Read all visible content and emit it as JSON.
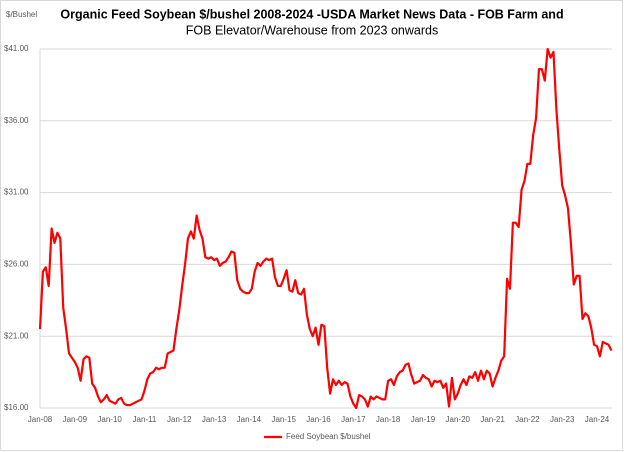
{
  "chart_data": {
    "type": "line",
    "title": [
      "Organic Feed Soybean $/bushel 2008-2024 -USDA Market News Data - FOB Farm and",
      "FOB Elevator/Warehouse from 2023 onwards"
    ],
    "y_label": "$/Bushel",
    "categories": [
      "Jan-08",
      null,
      null,
      null,
      null,
      null,
      null,
      null,
      null,
      null,
      null,
      null,
      "Jan-09",
      null,
      null,
      null,
      null,
      null,
      null,
      null,
      null,
      null,
      null,
      null,
      "Jan-10",
      null,
      null,
      null,
      null,
      null,
      null,
      null,
      null,
      null,
      null,
      null,
      "Jan-11",
      null,
      null,
      null,
      null,
      null,
      null,
      null,
      null,
      null,
      null,
      null,
      "Jan-12",
      null,
      null,
      null,
      null,
      null,
      null,
      null,
      null,
      null,
      null,
      null,
      "Jan-13",
      null,
      null,
      null,
      null,
      null,
      null,
      null,
      null,
      null,
      null,
      null,
      "Jan-14",
      null,
      null,
      null,
      null,
      null,
      null,
      null,
      null,
      null,
      null,
      null,
      "Jan-15",
      null,
      null,
      null,
      null,
      null,
      null,
      null,
      null,
      null,
      null,
      null,
      "Jan-16",
      null,
      null,
      null,
      null,
      null,
      null,
      null,
      null,
      null,
      null,
      null,
      "Jan-17",
      null,
      null,
      null,
      null,
      null,
      null,
      null,
      null,
      null,
      null,
      null,
      "Jan-18",
      null,
      null,
      null,
      null,
      null,
      null,
      null,
      null,
      null,
      null,
      null,
      "Jan-19",
      null,
      null,
      null,
      null,
      null,
      null,
      null,
      null,
      null,
      null,
      null,
      "Jan-20",
      null,
      null,
      null,
      null,
      null,
      null,
      null,
      null,
      null,
      null,
      null,
      "Jan-21",
      null,
      null,
      null,
      null,
      null,
      null,
      null,
      null,
      null,
      null,
      null,
      "Jan-22",
      null,
      null,
      null,
      null,
      null,
      null,
      null,
      null,
      null,
      null,
      null,
      "Jan-23",
      null,
      null,
      null,
      null,
      null,
      null,
      null,
      null,
      null,
      null,
      null,
      "Jan-24",
      null,
      null,
      null,
      null,
      null
    ],
    "series": [
      {
        "name": "Feed Soybean $/bushel",
        "color": "#ff0000",
        "values": [
          21.5,
          25.5,
          25.8,
          24.5,
          28.5,
          27.5,
          28.2,
          27.8,
          23.0,
          21.5,
          19.8,
          19.5,
          19.2,
          18.8,
          17.9,
          19.4,
          19.6,
          19.5,
          17.7,
          17.4,
          16.8,
          16.4,
          16.6,
          16.9,
          16.5,
          16.4,
          16.3,
          16.6,
          16.7,
          16.3,
          16.2,
          16.2,
          16.3,
          16.4,
          16.5,
          16.6,
          17.2,
          18.0,
          18.4,
          18.5,
          18.8,
          18.7,
          18.8,
          18.8,
          19.8,
          19.9,
          20.0,
          21.5,
          22.8,
          24.5,
          26.0,
          27.8,
          28.3,
          27.8,
          29.4,
          28.4,
          27.8,
          26.5,
          26.4,
          26.5,
          26.3,
          26.4,
          25.9,
          26.1,
          26.2,
          26.5,
          26.9,
          26.8,
          24.9,
          24.3,
          24.1,
          24.0,
          24.0,
          24.3,
          25.5,
          26.1,
          25.9,
          26.2,
          26.4,
          26.3,
          26.4,
          25.1,
          24.5,
          24.5,
          25.0,
          25.6,
          24.2,
          24.1,
          24.9,
          24.0,
          23.9,
          24.3,
          22.5,
          21.5,
          21.0,
          21.6,
          20.4,
          21.8,
          21.7,
          18.8,
          17.0,
          18.0,
          17.6,
          17.9,
          17.6,
          17.8,
          17.7,
          16.8,
          16.3,
          16.0,
          16.9,
          16.8,
          16.6,
          16.1,
          16.8,
          16.6,
          16.8,
          16.7,
          16.6,
          16.6,
          17.9,
          18.0,
          17.6,
          18.2,
          18.5,
          18.6,
          19.0,
          19.1,
          18.3,
          17.7,
          17.8,
          17.9,
          18.3,
          18.1,
          18.0,
          17.5,
          17.9,
          17.8,
          17.9,
          17.4,
          17.7,
          16.1,
          18.1,
          16.6,
          17.0,
          17.6,
          18.0,
          17.6,
          18.2,
          18.1,
          18.5,
          17.9,
          18.6,
          18.0,
          18.6,
          18.4,
          17.5,
          18.1,
          18.6,
          19.3,
          19.6,
          25.0,
          24.3,
          28.9,
          28.9,
          28.6,
          31.2,
          31.8,
          33.0,
          33.0,
          35.0,
          36.2,
          39.6,
          39.6,
          38.8,
          41.0,
          40.4,
          40.8,
          36.8,
          34.0,
          31.5,
          30.8,
          29.9,
          27.5,
          24.6,
          25.2,
          25.2,
          22.2,
          22.6,
          22.4,
          21.6,
          20.4,
          20.3,
          19.6,
          20.6,
          20.5,
          20.4,
          20.0
        ]
      }
    ],
    "ylim": [
      16,
      41
    ],
    "yticks": [
      {
        "value": 16,
        "label": "$16.00"
      },
      {
        "value": 21,
        "label": "$21.00"
      },
      {
        "value": 26,
        "label": "$26.00"
      },
      {
        "value": 31,
        "label": "$31.00"
      },
      {
        "value": 36,
        "label": "$36.00"
      },
      {
        "value": 41,
        "label": "$41.00"
      }
    ],
    "grid": true,
    "legend": "bottom"
  }
}
